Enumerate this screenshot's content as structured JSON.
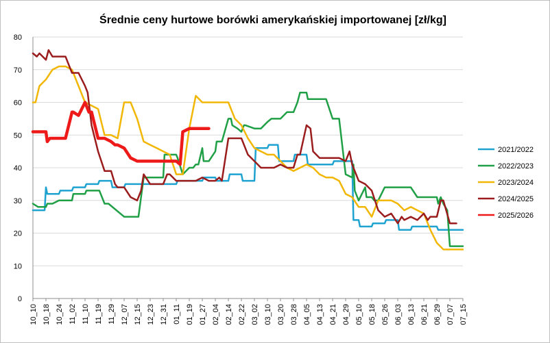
{
  "chart_data": {
    "type": "line",
    "title": "Średnie ceny hurtowe borówki amerykańskiej importowanej [zł/kg]",
    "xlabel": "",
    "ylabel": "",
    "ylim": [
      0,
      80
    ],
    "y_ticks": [
      "0",
      "10",
      "20",
      "30",
      "40",
      "50",
      "60",
      "70",
      "80"
    ],
    "x_ticks": [
      "10_10",
      "10_18",
      "10_24",
      "11_02",
      "11_10",
      "11_19",
      "11_29",
      "12_07",
      "12_15",
      "12_23",
      "12_31",
      "01_11",
      "01_19",
      "01_27",
      "02_04",
      "02_14",
      "02_22",
      "03_02",
      "03_10",
      "03_20",
      "03_28",
      "04_05",
      "04_13",
      "04_21",
      "04_29",
      "05_10",
      "05_18",
      "05_26",
      "06_03",
      "06_13",
      "06_21",
      "06_29",
      "07_07",
      "07_15"
    ],
    "grid": true,
    "legend_position": "right",
    "series": [
      {
        "name": "2021/2022",
        "color": "#1ea2d0",
        "width": 2.5,
        "x": [
          0,
          0.9,
          1.0,
          1.1,
          2.0,
          2.1,
          3.0,
          3.1,
          4.0,
          4.1,
          5.0,
          5.1,
          6.0,
          6.1,
          7.0,
          7.1,
          10.0,
          10.1,
          11.0,
          11.1,
          12.0,
          12.1,
          13.0,
          13.1,
          14.0,
          14.1,
          15.0,
          15.1,
          16.0,
          16.1,
          17.0,
          17.1,
          18.0,
          18.1,
          18.8,
          18.9,
          19.2,
          19.3,
          20.0,
          20.1,
          21.0,
          21.1,
          22.0,
          22.1,
          23.0,
          23.1,
          24.0,
          24.1,
          24.5,
          24.6,
          25.0,
          25.1,
          26.0,
          26.1,
          27.0,
          27.1,
          28.0,
          28.1,
          29.0,
          29.1,
          30.0,
          30.1,
          31.0,
          31.1,
          32.0,
          32.1,
          33.0
        ],
        "values": [
          27,
          27,
          34,
          32,
          32,
          33,
          33,
          34,
          34,
          35,
          35,
          36,
          36,
          34,
          34,
          35,
          35,
          35,
          35,
          36,
          36,
          36,
          36,
          37,
          37,
          36,
          36,
          38,
          38,
          36,
          36,
          46,
          46,
          47,
          47,
          42,
          42,
          42,
          42,
          44,
          44,
          41,
          41,
          41,
          41,
          42,
          42,
          42,
          42,
          24,
          24,
          22,
          22,
          23,
          23,
          24,
          24,
          21,
          21,
          22,
          22,
          22,
          22,
          21,
          21,
          21,
          21
        ]
      },
      {
        "name": "2022/2023",
        "color": "#20a046",
        "width": 2.5,
        "x": [
          0,
          0.4,
          0.5,
          1.0,
          1.1,
          1.5,
          2.0,
          3.0,
          3.1,
          4.0,
          4.1,
          5.0,
          5.1,
          5.5,
          5.8,
          7.0,
          7.1,
          8.0,
          8.1,
          8.5,
          9.0,
          9.4,
          9.5,
          10.0,
          10.1,
          11.0,
          11.1,
          11.5,
          12.0,
          12.3,
          12.5,
          12.7,
          13.0,
          13.1,
          13.5,
          14.0,
          14.1,
          14.5,
          15.0,
          15.2,
          15.3,
          15.7,
          16.0,
          16.2,
          16.3,
          17.0,
          17.5,
          18.0,
          18.3,
          18.5,
          19.0,
          19.5,
          20.0,
          20.3,
          20.5,
          21.0,
          21.1,
          22.0,
          22.5,
          23.0,
          23.1,
          23.5,
          24.0,
          24.5,
          24.6,
          24.7,
          25.0,
          25.5,
          25.6,
          26.0,
          26.2,
          26.5,
          27.0,
          27.5,
          28.0,
          28.5,
          29.0,
          29.5,
          30.0,
          30.5,
          31.0,
          31.1,
          31.3,
          31.5,
          31.8,
          32.0,
          32.1,
          33.0
        ],
        "values": [
          29,
          28,
          28,
          28,
          29,
          29,
          30,
          30,
          32,
          32,
          33,
          33,
          33,
          29,
          29,
          25,
          25,
          25,
          25,
          37,
          37,
          37,
          37,
          37,
          44,
          44,
          43,
          38,
          40,
          40,
          41,
          41,
          46,
          42,
          42,
          45,
          48,
          48,
          55,
          55,
          53,
          52,
          51,
          53,
          53,
          52,
          52,
          54,
          55,
          55,
          55,
          57,
          57,
          60,
          63,
          63,
          61,
          61,
          61,
          55,
          55,
          55,
          38,
          37,
          41,
          33,
          30,
          34,
          31,
          31,
          30,
          30,
          34,
          34,
          34,
          34,
          34,
          31,
          31,
          31,
          31,
          29,
          31,
          29,
          27,
          16,
          16,
          16
        ]
      },
      {
        "name": "2023/2024",
        "color": "#f2b705",
        "width": 2.5,
        "x": [
          0,
          0.2,
          0.5,
          1.0,
          1.5,
          2.0,
          2.5,
          3.0,
          3.5,
          4.0,
          4.5,
          5.0,
          5.5,
          6.0,
          6.5,
          7.0,
          7.5,
          8.0,
          8.5,
          9.0,
          9.5,
          10.0,
          10.5,
          11.0,
          11.5,
          12.0,
          12.5,
          13.0,
          13.5,
          14.0,
          14.5,
          15.0,
          15.5,
          16.0,
          16.5,
          17.0,
          17.5,
          18.0,
          18.5,
          19.0,
          19.5,
          20.0,
          20.5,
          21.0,
          21.5,
          22.0,
          22.5,
          23.0,
          23.5,
          24.0,
          24.5,
          25.0,
          25.5,
          26.0,
          26.5,
          27.0,
          27.5,
          28.0,
          28.5,
          29.0,
          29.5,
          30.0,
          30.5,
          31.0,
          31.5,
          32.0,
          33.0
        ],
        "values": [
          60,
          60,
          65,
          67,
          70,
          71,
          71,
          70,
          65,
          60,
          59,
          58,
          50,
          50,
          49,
          60,
          60,
          55,
          48,
          47,
          46,
          45,
          44,
          38,
          38,
          52,
          62,
          60,
          60,
          60,
          60,
          60,
          55,
          53,
          49,
          46,
          45,
          44,
          44,
          42,
          40,
          39,
          40,
          41,
          40,
          38,
          37,
          37,
          36,
          32,
          31,
          28,
          28,
          25,
          30,
          30,
          30,
          29,
          27,
          28,
          27,
          26,
          21,
          17,
          15,
          15,
          15
        ]
      },
      {
        "name": "2024/2025",
        "color": "#9b1c1c",
        "width": 2.5,
        "x": [
          0,
          0.3,
          0.5,
          1.0,
          1.2,
          1.5,
          2.0,
          2.5,
          3.0,
          3.5,
          4.0,
          4.2,
          4.5,
          5.0,
          5.5,
          6.0,
          6.3,
          6.5,
          7.0,
          7.5,
          8.0,
          8.3,
          8.5,
          9.0,
          9.5,
          10.0,
          10.3,
          10.5,
          11.0,
          11.5,
          12.0,
          12.5,
          13.0,
          13.5,
          14.0,
          14.3,
          14.5,
          15.0,
          15.5,
          16.0,
          16.5,
          17.0,
          17.5,
          18.0,
          18.5,
          19.0,
          19.5,
          20.0,
          20.3,
          20.5,
          21.0,
          21.3,
          21.5,
          22.0,
          22.5,
          23.0,
          23.5,
          24.0,
          24.3,
          24.5,
          25.0,
          25.5,
          26.0,
          26.5,
          27.0,
          27.5,
          28.0,
          28.3,
          28.5,
          29.0,
          29.5,
          30.0,
          30.3,
          30.5,
          31.0,
          31.3,
          31.5,
          32.0,
          32.5
        ],
        "values": [
          75,
          74,
          75,
          73,
          76,
          74,
          74,
          74,
          69,
          69,
          65,
          63,
          53,
          45,
          39,
          39,
          35,
          34,
          34,
          31,
          30,
          33,
          38,
          35,
          35,
          35,
          38,
          38,
          36,
          36,
          36,
          36,
          37,
          36,
          36,
          37,
          36,
          49,
          49,
          49,
          44,
          42,
          40,
          40,
          40,
          41,
          40,
          40,
          44,
          44,
          53,
          52,
          45,
          43,
          43,
          43,
          43,
          42,
          45,
          41,
          36,
          35,
          33,
          27,
          25,
          26,
          23,
          25,
          24,
          25,
          24,
          26,
          24,
          25,
          25,
          30,
          30,
          23,
          23
        ]
      },
      {
        "name": "2025/2026",
        "color": "#ee1a1a",
        "width": 4.5,
        "x": [
          0,
          0.3,
          0.6,
          1.0,
          1.1,
          1.3,
          1.5,
          2.0,
          2.5,
          3.0,
          3.1,
          3.5,
          4.0,
          4.3,
          4.5,
          5.0,
          5.5,
          6.0,
          6.3,
          6.5,
          7.0,
          7.5,
          8.0,
          8.5,
          9.0,
          9.5,
          10.0,
          10.5,
          11.0,
          11.3,
          11.5,
          12.0,
          12.5,
          13.0,
          13.5
        ],
        "values": [
          51,
          51,
          51,
          51,
          48,
          49,
          49,
          49,
          49,
          57,
          57,
          56,
          60,
          57,
          57,
          49,
          49,
          48,
          47,
          47,
          46,
          43,
          42,
          42,
          42,
          42,
          42,
          42,
          42,
          41,
          51,
          52,
          52,
          52,
          52
        ]
      }
    ]
  }
}
